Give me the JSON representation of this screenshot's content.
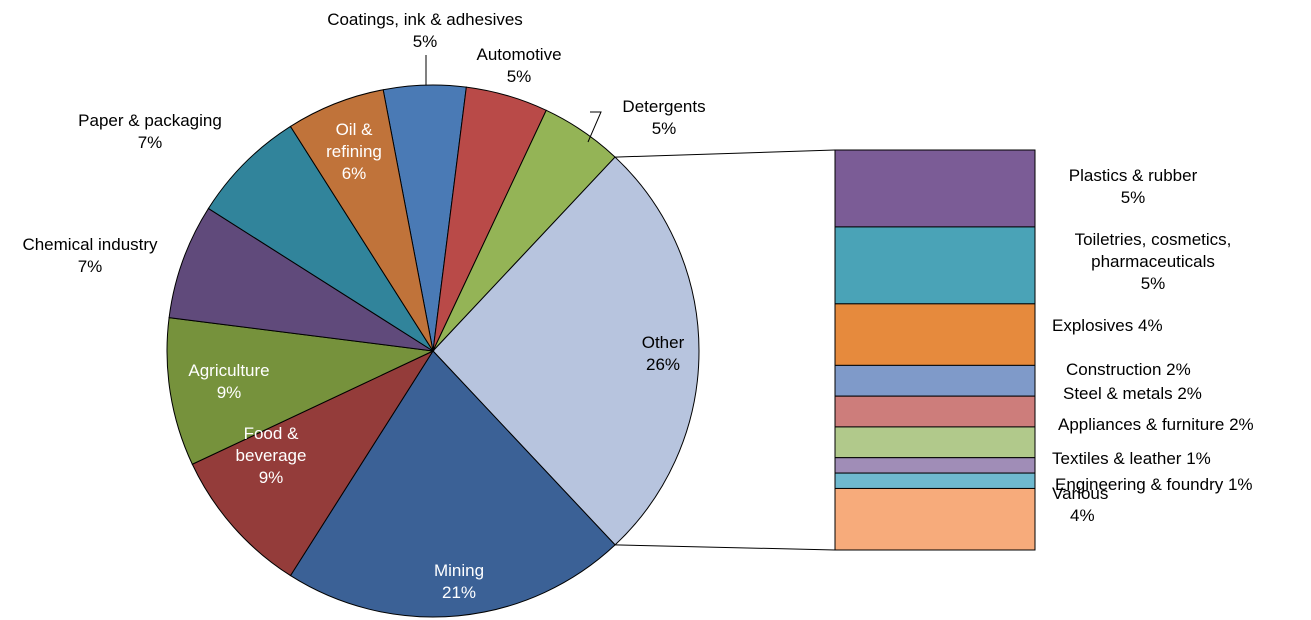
{
  "chart_data": {
    "type": "pie-of-bar",
    "pie": {
      "categories": [
        "Coatings, ink & adhesives",
        "Automotive",
        "Detergents",
        "Other",
        "Mining",
        "Food & beverage",
        "Agriculture",
        "Chemical industry",
        "Paper & packaging",
        "Oil & refining"
      ],
      "values": [
        5,
        5,
        5,
        26,
        21,
        9,
        9,
        7,
        7,
        6
      ],
      "value_labels": [
        "5%",
        "5%",
        "5%",
        "26%",
        "21%",
        "9%",
        "9%",
        "7%",
        "7%",
        "6%"
      ],
      "colors": [
        "#4a7ab5",
        "#b94a48",
        "#94b456",
        "#b7c4de",
        "#3b6196",
        "#943c3a",
        "#76923c",
        "#604a7b",
        "#31849b",
        "#c0733a"
      ]
    },
    "bar": {
      "categories": [
        "Plastics & rubber",
        "Toiletries, cosmetics, pharmaceuticals",
        "Explosives",
        "Construction",
        "Steel & metals",
        "Appliances & furniture",
        "Textiles & leather",
        "Engineering & foundry",
        "Various"
      ],
      "values": [
        5,
        5,
        4,
        2,
        2,
        2,
        1,
        1,
        4
      ],
      "value_labels": [
        "5%",
        "5%",
        "4%",
        "2%",
        "2%",
        "2%",
        "1%",
        "1%",
        "4%"
      ],
      "colors": [
        "#7b5c96",
        "#4aa3b7",
        "#e68a3d",
        "#7f9ac9",
        "#cd7d7b",
        "#b1c98b",
        "#a08db7",
        "#6fb9cf",
        "#f7ab7b"
      ]
    }
  }
}
